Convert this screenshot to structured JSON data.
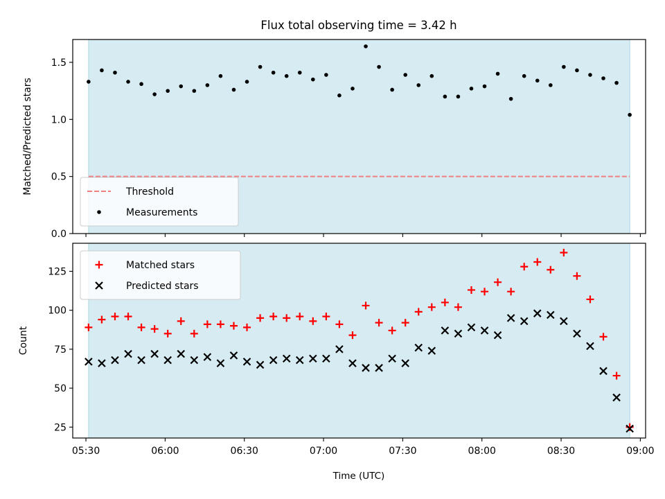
{
  "chart_data": [
    {
      "type": "scatter",
      "title": "Flux total observing time = 3.42 h",
      "ylabel": "Matched/Predicted stars",
      "ylim": [
        0,
        1.7
      ],
      "yticks": [
        0.0,
        0.5,
        1.0,
        1.5
      ],
      "ytick_labels": [
        "0.0",
        "0.5",
        "1.0",
        "1.5"
      ],
      "xlim": [
        "05:25",
        "09:02"
      ],
      "grid": false,
      "legend": "lower-left",
      "shaded_span": {
        "x": [
          "05:31",
          "08:56"
        ],
        "color": "#add8e6"
      },
      "threshold": {
        "name": "Threshold",
        "value": 0.5,
        "color": "#f08080",
        "style": "dashed"
      },
      "series": [
        {
          "name": "Measurements",
          "color": "#000000",
          "marker": "dot",
          "x": [
            "05:31",
            "05:36",
            "05:41",
            "05:46",
            "05:51",
            "05:56",
            "06:01",
            "06:06",
            "06:11",
            "06:16",
            "06:21",
            "06:26",
            "06:31",
            "06:36",
            "06:41",
            "06:46",
            "06:51",
            "06:56",
            "07:01",
            "07:06",
            "07:11",
            "07:16",
            "07:21",
            "07:26",
            "07:31",
            "07:36",
            "07:41",
            "07:46",
            "07:51",
            "07:56",
            "08:01",
            "08:06",
            "08:11",
            "08:16",
            "08:21",
            "08:26",
            "08:31",
            "08:36",
            "08:41",
            "08:46",
            "08:51",
            "08:56"
          ],
          "y": [
            1.33,
            1.43,
            1.41,
            1.33,
            1.31,
            1.22,
            1.25,
            1.29,
            1.25,
            1.3,
            1.38,
            1.26,
            1.33,
            1.46,
            1.41,
            1.38,
            1.41,
            1.35,
            1.39,
            1.21,
            1.27,
            1.64,
            1.46,
            1.26,
            1.39,
            1.3,
            1.38,
            1.2,
            1.2,
            1.27,
            1.29,
            1.4,
            1.18,
            1.38,
            1.34,
            1.3,
            1.46,
            1.43,
            1.39,
            1.36,
            1.32,
            1.04
          ]
        }
      ]
    },
    {
      "type": "scatter",
      "xlabel": "Time (UTC)",
      "ylabel": "Count",
      "ylim": [
        18,
        143
      ],
      "yticks": [
        25,
        50,
        75,
        100,
        125
      ],
      "xlim": [
        "05:25",
        "09:02"
      ],
      "xticks": [
        "05:30",
        "06:00",
        "06:30",
        "07:00",
        "07:30",
        "08:00",
        "08:30",
        "09:00"
      ],
      "grid": false,
      "legend": "upper-left",
      "shaded_span": {
        "x": [
          "05:31",
          "08:56"
        ],
        "color": "#add8e6"
      },
      "series": [
        {
          "name": "Matched stars",
          "color": "#ff0000",
          "marker": "plus",
          "x": [
            "05:31",
            "05:36",
            "05:41",
            "05:46",
            "05:51",
            "05:56",
            "06:01",
            "06:06",
            "06:11",
            "06:16",
            "06:21",
            "06:26",
            "06:31",
            "06:36",
            "06:41",
            "06:46",
            "06:51",
            "06:56",
            "07:01",
            "07:06",
            "07:11",
            "07:16",
            "07:21",
            "07:26",
            "07:31",
            "07:36",
            "07:41",
            "07:46",
            "07:51",
            "07:56",
            "08:01",
            "08:06",
            "08:11",
            "08:16",
            "08:21",
            "08:26",
            "08:31",
            "08:36",
            "08:41",
            "08:46",
            "08:51",
            "08:56"
          ],
          "y": [
            89,
            94,
            96,
            96,
            89,
            88,
            85,
            93,
            85,
            91,
            91,
            90,
            89,
            95,
            96,
            95,
            96,
            93,
            96,
            91,
            84,
            103,
            92,
            87,
            92,
            99,
            102,
            105,
            102,
            113,
            112,
            118,
            112,
            128,
            131,
            126,
            137,
            122,
            107,
            83,
            58,
            25
          ]
        },
        {
          "name": "Predicted stars",
          "color": "#000000",
          "marker": "x",
          "x": [
            "05:31",
            "05:36",
            "05:41",
            "05:46",
            "05:51",
            "05:56",
            "06:01",
            "06:06",
            "06:11",
            "06:16",
            "06:21",
            "06:26",
            "06:31",
            "06:36",
            "06:41",
            "06:46",
            "06:51",
            "06:56",
            "07:01",
            "07:06",
            "07:11",
            "07:16",
            "07:21",
            "07:26",
            "07:31",
            "07:36",
            "07:41",
            "07:46",
            "07:51",
            "07:56",
            "08:01",
            "08:06",
            "08:11",
            "08:16",
            "08:21",
            "08:26",
            "08:31",
            "08:36",
            "08:41",
            "08:46",
            "08:51",
            "08:56"
          ],
          "y": [
            67,
            66,
            68,
            72,
            68,
            72,
            68,
            72,
            68,
            70,
            66,
            71,
            67,
            65,
            68,
            69,
            68,
            69,
            69,
            75,
            66,
            63,
            63,
            69,
            66,
            76,
            74,
            87,
            85,
            89,
            87,
            84,
            95,
            93,
            98,
            97,
            93,
            85,
            77,
            61,
            44,
            24
          ]
        }
      ]
    }
  ]
}
